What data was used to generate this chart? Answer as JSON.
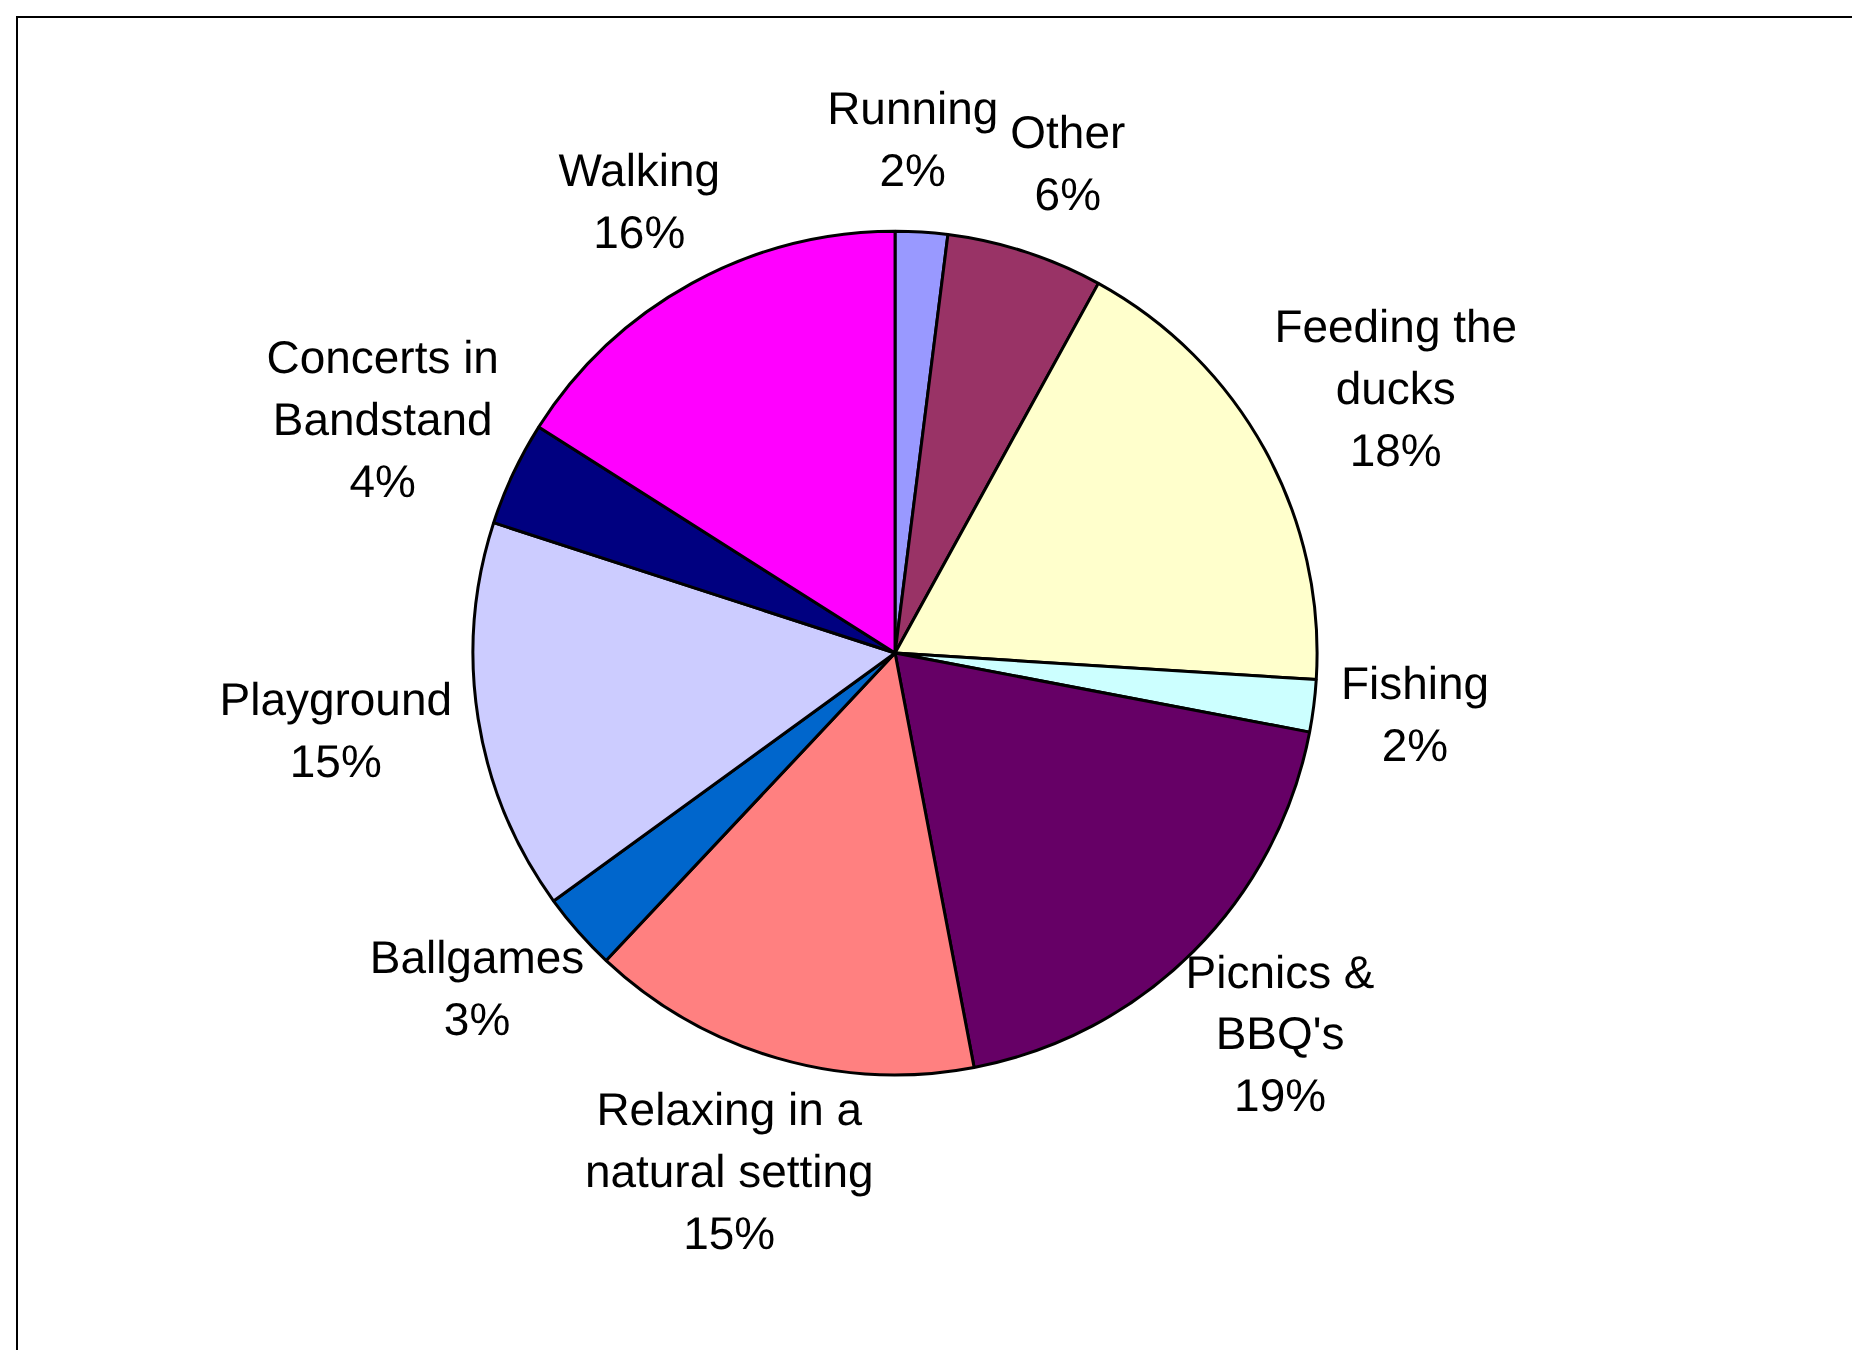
{
  "chart_data": {
    "type": "pie",
    "categories": [
      "Running",
      "Other",
      "Feeding the ducks",
      "Fishing",
      "Picnics & BBQ's",
      "Relaxing in a natural setting",
      "Ballgames",
      "Playground",
      "Concerts in Bandstand",
      "Walking"
    ],
    "values": [
      2,
      6,
      18,
      2,
      19,
      15,
      3,
      15,
      4,
      16
    ],
    "colors": [
      "#9999ff",
      "#993366",
      "#ffffcc",
      "#ccffff",
      "#660066",
      "#ff8080",
      "#0066cc",
      "#ccccff",
      "#000080",
      "#ff00ff"
    ],
    "value_labels": [
      "2%",
      "6%",
      "18%",
      "2%",
      "19%",
      "15%",
      "3%",
      "15%",
      "4%",
      "16%"
    ],
    "legend": false
  }
}
